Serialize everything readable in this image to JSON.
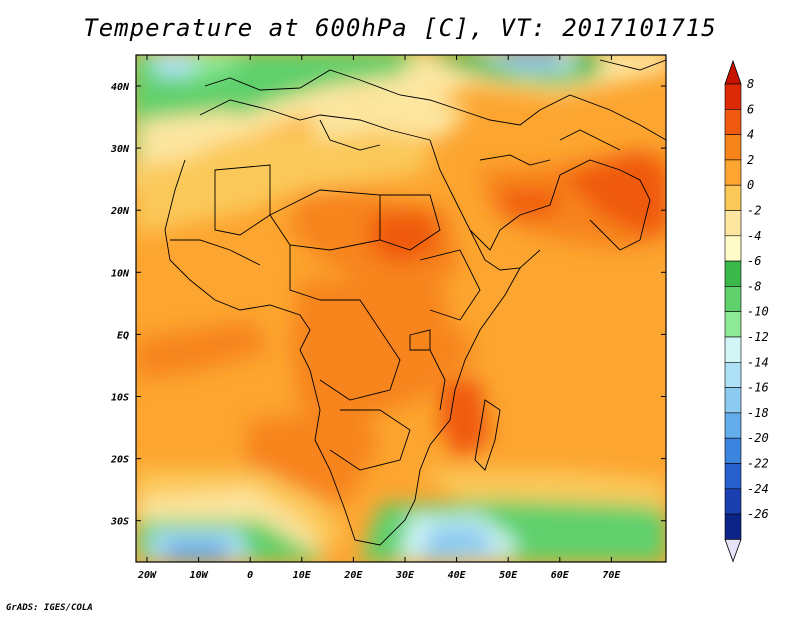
{
  "title": "Temperature at 600hPa [C], VT: 2017101715",
  "credit": "GrADS: IGES/COLA",
  "map": {
    "lon_ticks": [
      "20W",
      "10W",
      "0",
      "10E",
      "20E",
      "30E",
      "40E",
      "50E",
      "60E",
      "70E"
    ],
    "lat_ticks": [
      "40N",
      "30N",
      "20N",
      "10N",
      "EQ",
      "10S",
      "20S",
      "30S"
    ],
    "variable_unit": "C"
  },
  "colorbar": {
    "labels": [
      "8",
      "6",
      "4",
      "2",
      "0",
      "-2",
      "-4",
      "-6",
      "-8",
      "-10",
      "-12",
      "-14",
      "-16",
      "-18",
      "-20",
      "-22",
      "-24",
      "-26"
    ],
    "colors": [
      "#dd2a06",
      "#f05a10",
      "#f7841a",
      "#fca530",
      "#fbc95a",
      "#fde6a0",
      "#fefbc8",
      "#3cb84a",
      "#5fd06c",
      "#8eea96",
      "#d2f6f6",
      "#aee0f6",
      "#8ccaf0",
      "#64acea",
      "#3d84de",
      "#2860cc",
      "#1a40b0",
      "#0c2286"
    ],
    "over_color": "#c81200",
    "under_color": "#e6e2f8"
  }
}
